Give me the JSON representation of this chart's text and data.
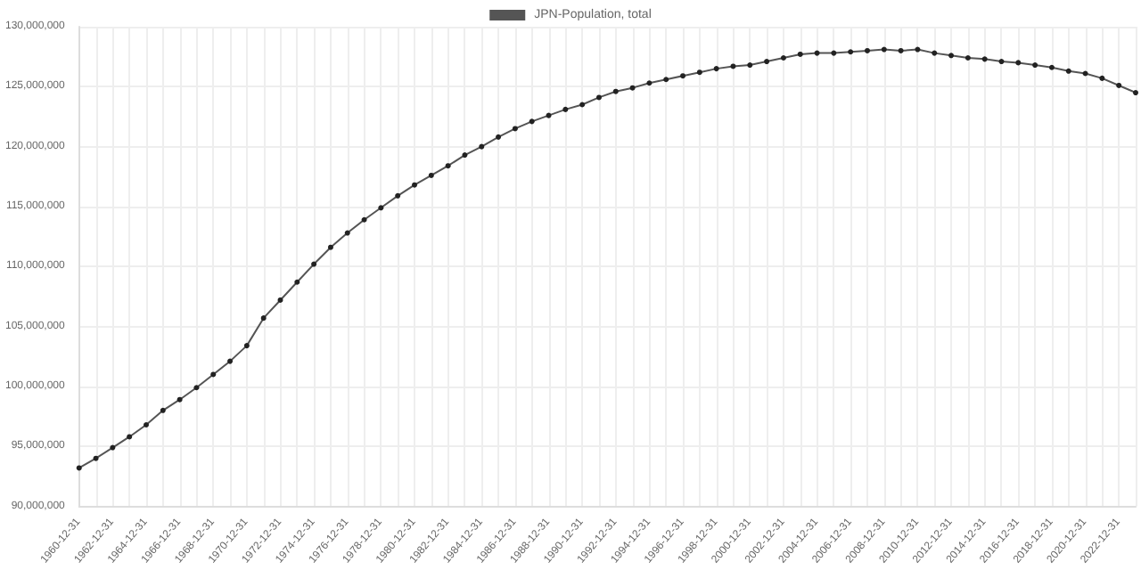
{
  "chart_data": {
    "type": "line",
    "categories": [
      "1960-12-31",
      null,
      "1962-12-31",
      null,
      "1964-12-31",
      null,
      "1966-12-31",
      null,
      "1968-12-31",
      null,
      "1970-12-31",
      null,
      "1972-12-31",
      null,
      "1974-12-31",
      null,
      "1976-12-31",
      null,
      "1978-12-31",
      null,
      "1980-12-31",
      null,
      "1982-12-31",
      null,
      "1984-12-31",
      null,
      "1986-12-31",
      null,
      "1988-12-31",
      null,
      "1990-12-31",
      null,
      "1992-12-31",
      null,
      "1994-12-31",
      null,
      "1996-12-31",
      null,
      "1998-12-31",
      null,
      "2000-12-31",
      null,
      "2002-12-31",
      null,
      "2004-12-31",
      null,
      "2006-12-31",
      null,
      "2008-12-31",
      null,
      "2010-12-31",
      null,
      "2012-12-31",
      null,
      "2014-12-31",
      null,
      "2016-12-31",
      null,
      "2018-12-31",
      null,
      "2020-12-31",
      null,
      "2022-12-31",
      null
    ],
    "series": [
      {
        "name": "JPN-Population, total",
        "color": "#555555",
        "values": [
          93200000,
          94000000,
          94900000,
          95800000,
          96800000,
          98000000,
          98900000,
          99900000,
          101000000,
          102100000,
          103400000,
          105700000,
          107200000,
          108700000,
          110200000,
          111600000,
          112800000,
          113900000,
          114900000,
          115900000,
          116800000,
          117600000,
          118400000,
          119300000,
          120000000,
          120800000,
          121500000,
          122100000,
          122600000,
          123100000,
          123500000,
          124100000,
          124600000,
          124900000,
          125300000,
          125600000,
          125900000,
          126200000,
          126500000,
          126700000,
          126800000,
          127100000,
          127400000,
          127700000,
          127800000,
          127800000,
          127900000,
          128000000,
          128100000,
          128000000,
          128100000,
          127800000,
          127600000,
          127400000,
          127300000,
          127100000,
          127000000,
          126800000,
          126600000,
          126300000,
          126100000,
          125700000,
          125100000,
          124500000
        ]
      }
    ],
    "ylim": [
      90000000,
      130000000
    ],
    "yticks": [
      {
        "value": 90000000,
        "label": "90,000,000"
      },
      {
        "value": 95000000,
        "label": "95,000,000"
      },
      {
        "value": 100000000,
        "label": "100,000,000"
      },
      {
        "value": 105000000,
        "label": "105,000,000"
      },
      {
        "value": 110000000,
        "label": "110,000,000"
      },
      {
        "value": 115000000,
        "label": "115,000,000"
      },
      {
        "value": 120000000,
        "label": "120,000,000"
      },
      {
        "value": 125000000,
        "label": "125,000,000"
      },
      {
        "value": 130000000,
        "label": "130,000,000"
      }
    ],
    "grid": true,
    "legend": "top",
    "marker": "circle",
    "line_style": "solid"
  }
}
